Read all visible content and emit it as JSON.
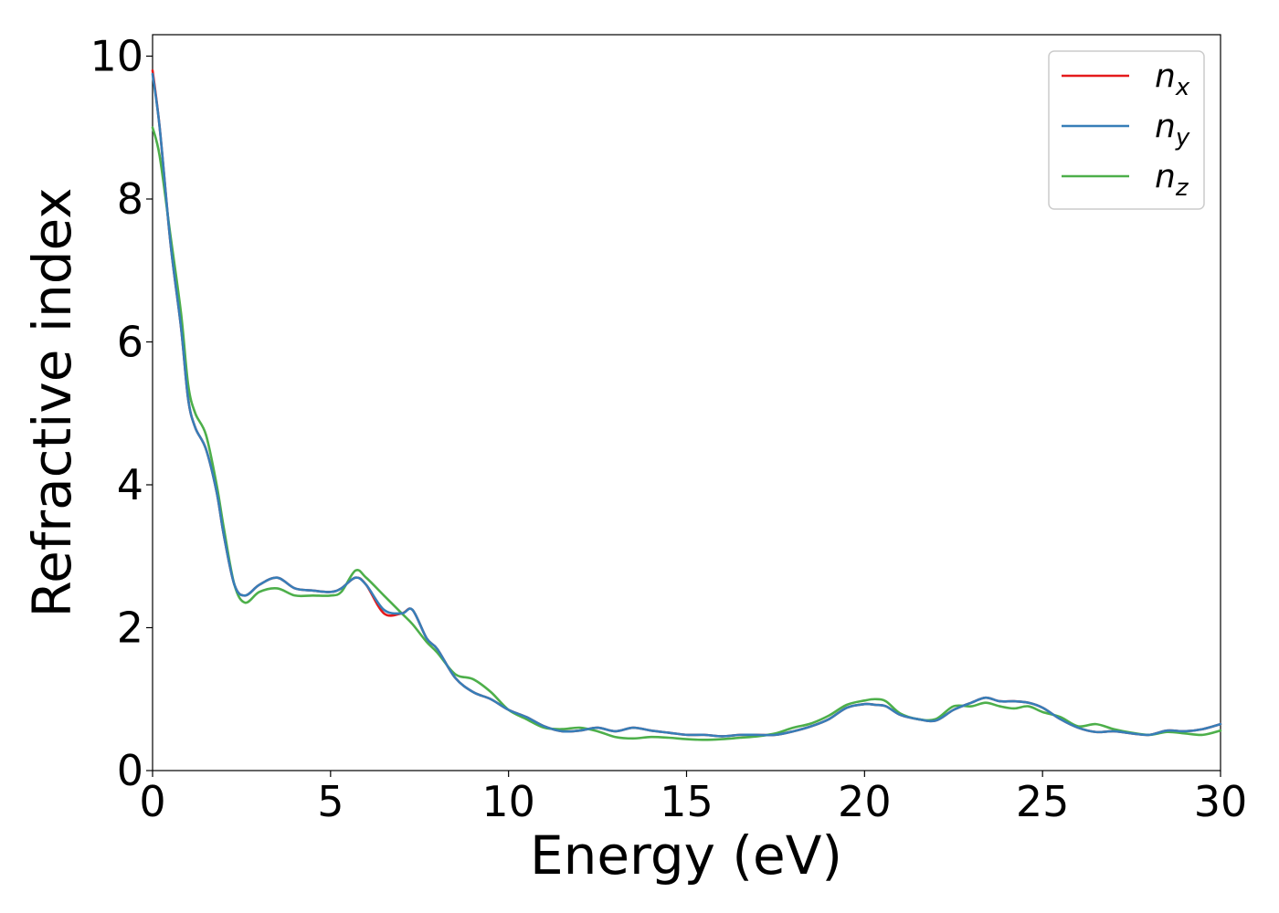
{
  "chart_data": {
    "type": "line",
    "title": "",
    "xlabel": "Energy (eV)",
    "ylabel": "Refractive index",
    "xlim": [
      0,
      30
    ],
    "ylim": [
      0,
      10.3
    ],
    "xticks": [
      0,
      5,
      10,
      15,
      20,
      25,
      30
    ],
    "yticks": [
      0,
      2,
      4,
      6,
      8,
      10
    ],
    "xtick_labels": [
      "0",
      "5",
      "10",
      "15",
      "20",
      "25",
      "30"
    ],
    "ytick_labels": [
      "0",
      "2",
      "4",
      "6",
      "8",
      "10"
    ],
    "grid": false,
    "legend_position": "top-right",
    "series": [
      {
        "name": "n_x",
        "legend_base": "n",
        "legend_sub": "x",
        "color": "#e41a1c",
        "x": [
          0,
          0.2,
          0.5,
          0.8,
          1.0,
          1.2,
          1.5,
          1.8,
          2.0,
          2.3,
          2.6,
          3.0,
          3.5,
          4.0,
          4.5,
          5.0,
          5.3,
          5.7,
          6.0,
          6.5,
          7.0,
          7.3,
          7.7,
          8.0,
          8.5,
          9.0,
          9.5,
          10.0,
          10.5,
          11.0,
          11.5,
          12.0,
          12.5,
          13.0,
          13.5,
          14.0,
          14.5,
          15.0,
          15.5,
          16.0,
          16.5,
          17.0,
          17.5,
          18.0,
          18.5,
          19.0,
          19.5,
          20.0,
          20.3,
          20.6,
          21.0,
          21.5,
          22.0,
          22.5,
          23.0,
          23.4,
          23.8,
          24.2,
          24.6,
          25.0,
          25.5,
          26.0,
          26.5,
          27.0,
          27.5,
          28.0,
          28.5,
          29.0,
          29.5,
          30.0
        ],
        "y": [
          9.8,
          9.0,
          7.4,
          6.2,
          5.2,
          4.8,
          4.5,
          3.9,
          3.3,
          2.6,
          2.45,
          2.6,
          2.7,
          2.55,
          2.52,
          2.5,
          2.55,
          2.7,
          2.6,
          2.2,
          2.2,
          2.25,
          1.85,
          1.7,
          1.3,
          1.1,
          1.0,
          0.85,
          0.75,
          0.62,
          0.55,
          0.56,
          0.6,
          0.55,
          0.6,
          0.56,
          0.53,
          0.5,
          0.5,
          0.48,
          0.5,
          0.5,
          0.5,
          0.55,
          0.62,
          0.72,
          0.88,
          0.93,
          0.92,
          0.9,
          0.78,
          0.72,
          0.7,
          0.85,
          0.95,
          1.02,
          0.97,
          0.97,
          0.95,
          0.88,
          0.72,
          0.6,
          0.54,
          0.55,
          0.52,
          0.5,
          0.56,
          0.55,
          0.58,
          0.65
        ]
      },
      {
        "name": "n_y",
        "legend_base": "n",
        "legend_sub": "y",
        "color": "#377eb8",
        "x": [
          0,
          0.2,
          0.5,
          0.8,
          1.0,
          1.2,
          1.5,
          1.8,
          2.0,
          2.3,
          2.6,
          3.0,
          3.5,
          4.0,
          4.5,
          5.0,
          5.3,
          5.7,
          6.0,
          6.5,
          7.0,
          7.3,
          7.7,
          8.0,
          8.5,
          9.0,
          9.5,
          10.0,
          10.5,
          11.0,
          11.5,
          12.0,
          12.5,
          13.0,
          13.5,
          14.0,
          14.5,
          15.0,
          15.5,
          16.0,
          16.5,
          17.0,
          17.5,
          18.0,
          18.5,
          19.0,
          19.5,
          20.0,
          20.3,
          20.6,
          21.0,
          21.5,
          22.0,
          22.5,
          23.0,
          23.4,
          23.8,
          24.2,
          24.6,
          25.0,
          25.5,
          26.0,
          26.5,
          27.0,
          27.5,
          28.0,
          28.5,
          29.0,
          29.5,
          30.0
        ],
        "y": [
          9.75,
          9.0,
          7.4,
          6.2,
          5.2,
          4.8,
          4.5,
          3.9,
          3.3,
          2.6,
          2.45,
          2.6,
          2.7,
          2.55,
          2.52,
          2.5,
          2.55,
          2.7,
          2.6,
          2.25,
          2.2,
          2.25,
          1.85,
          1.7,
          1.3,
          1.1,
          1.0,
          0.85,
          0.75,
          0.62,
          0.55,
          0.56,
          0.6,
          0.55,
          0.6,
          0.56,
          0.53,
          0.5,
          0.5,
          0.48,
          0.5,
          0.5,
          0.5,
          0.55,
          0.62,
          0.72,
          0.88,
          0.93,
          0.92,
          0.9,
          0.78,
          0.72,
          0.7,
          0.85,
          0.95,
          1.02,
          0.97,
          0.97,
          0.95,
          0.88,
          0.72,
          0.6,
          0.54,
          0.55,
          0.52,
          0.5,
          0.56,
          0.55,
          0.58,
          0.65
        ]
      },
      {
        "name": "n_z",
        "legend_base": "n",
        "legend_sub": "z",
        "color": "#4daf4a",
        "x": [
          0,
          0.2,
          0.5,
          0.8,
          1.0,
          1.2,
          1.5,
          1.8,
          2.0,
          2.3,
          2.6,
          3.0,
          3.5,
          4.0,
          4.5,
          5.0,
          5.3,
          5.7,
          6.0,
          6.5,
          7.0,
          7.3,
          7.7,
          8.0,
          8.5,
          9.0,
          9.5,
          10.0,
          10.5,
          11.0,
          11.5,
          12.0,
          12.5,
          13.0,
          13.5,
          14.0,
          14.5,
          15.0,
          15.5,
          16.0,
          16.5,
          17.0,
          17.5,
          18.0,
          18.5,
          19.0,
          19.5,
          20.0,
          20.3,
          20.6,
          21.0,
          21.5,
          22.0,
          22.5,
          23.0,
          23.4,
          23.8,
          24.2,
          24.6,
          25.0,
          25.5,
          26.0,
          26.5,
          27.0,
          27.5,
          28.0,
          28.5,
          29.0,
          29.5,
          30.0
        ],
        "y": [
          9.0,
          8.6,
          7.5,
          6.4,
          5.4,
          5.0,
          4.7,
          4.0,
          3.4,
          2.6,
          2.35,
          2.5,
          2.55,
          2.45,
          2.45,
          2.45,
          2.5,
          2.8,
          2.7,
          2.45,
          2.2,
          2.05,
          1.8,
          1.65,
          1.35,
          1.28,
          1.1,
          0.85,
          0.72,
          0.6,
          0.58,
          0.6,
          0.55,
          0.47,
          0.45,
          0.47,
          0.46,
          0.44,
          0.43,
          0.44,
          0.46,
          0.48,
          0.52,
          0.6,
          0.66,
          0.77,
          0.92,
          0.98,
          1.0,
          0.97,
          0.8,
          0.72,
          0.72,
          0.9,
          0.9,
          0.95,
          0.9,
          0.87,
          0.9,
          0.82,
          0.75,
          0.62,
          0.65,
          0.58,
          0.53,
          0.5,
          0.54,
          0.52,
          0.5,
          0.56
        ]
      }
    ]
  }
}
